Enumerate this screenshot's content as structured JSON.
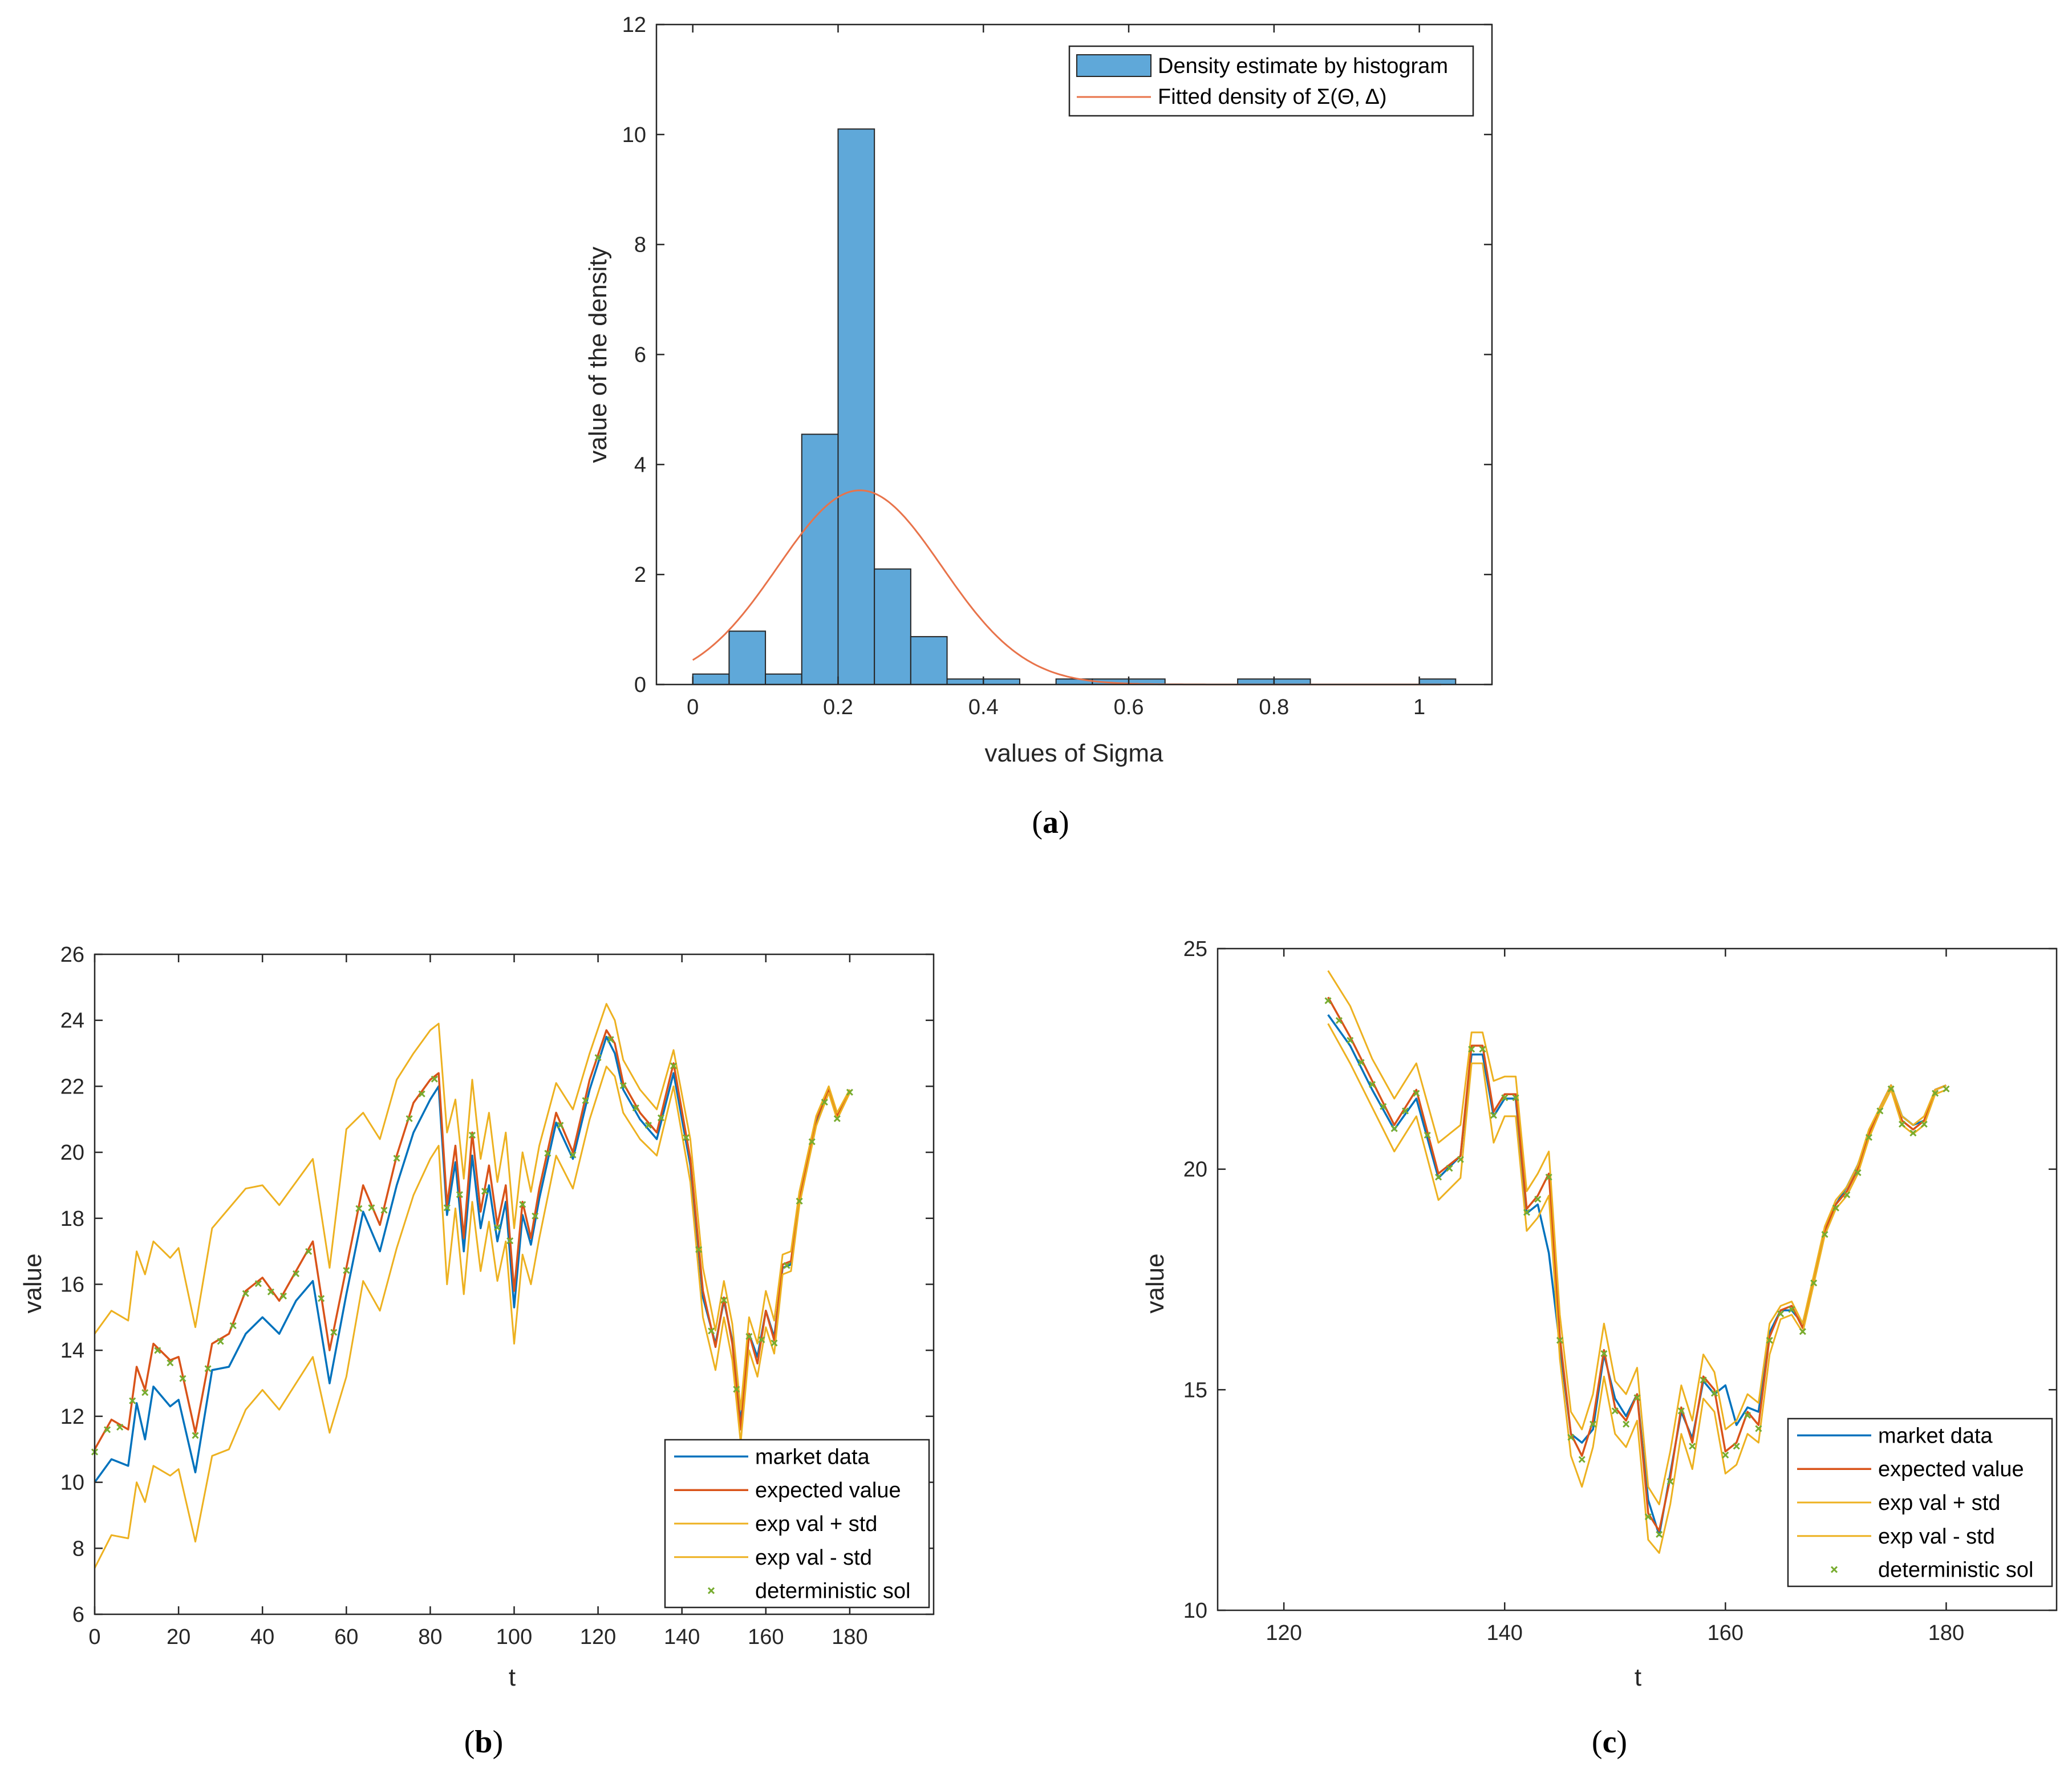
{
  "colors": {
    "blue": "#0072BD",
    "red": "#D95319",
    "orange": "#EDB120",
    "green": "#77AC30",
    "hist_fill": "#5FA8D9",
    "fitted": "#E8734A",
    "axis": "#262626",
    "legend_border": "#262626"
  },
  "captions": {
    "a": [
      "(",
      "a",
      ")"
    ],
    "b": [
      "(",
      "b",
      ")"
    ],
    "c": [
      "(",
      "c",
      ")"
    ]
  },
  "chart_data": [
    {
      "id": "a",
      "type": "bar",
      "title": "",
      "xlabel": "values of Sigma",
      "ylabel": "value of the density",
      "xlim": [
        -0.05,
        1.1
      ],
      "ylim": [
        0,
        12
      ],
      "xticks": [
        0,
        0.2,
        0.4,
        0.6,
        0.8,
        1
      ],
      "xtick_labels": [
        "0",
        "0.2",
        "0.4",
        "0.6",
        "0.8",
        "1"
      ],
      "yticks": [
        0,
        2,
        4,
        6,
        8,
        10,
        12
      ],
      "ytick_labels": [
        "0",
        "2",
        "4",
        "6",
        "8",
        "10",
        "12"
      ],
      "bin_width": 0.05,
      "bin_starts": [
        0,
        0.05,
        0.1,
        0.15,
        0.2,
        0.25,
        0.3,
        0.35,
        0.4,
        0.45,
        0.5,
        0.55,
        0.6,
        0.65,
        0.7,
        0.75,
        0.8,
        0.85,
        0.9,
        0.95,
        1.0
      ],
      "bin_heights": [
        0.19,
        0.97,
        0.19,
        4.55,
        10.1,
        2.1,
        0.87,
        0.1,
        0.1,
        0,
        0.1,
        0.1,
        0.1,
        0,
        0,
        0.1,
        0.1,
        0,
        0,
        0,
        0.1
      ],
      "fitted": {
        "mean": 0.23,
        "std": 0.113,
        "x_range": [
          0,
          1.03
        ]
      },
      "legend": [
        "Density estimate by histogram",
        "Fitted density of Σ(Θ, Δ)"
      ]
    },
    {
      "id": "b",
      "type": "line",
      "xlabel": "t",
      "ylabel": "value",
      "xlim": [
        0,
        200
      ],
      "ylim": [
        6,
        26
      ],
      "xticks": [
        0,
        20,
        40,
        60,
        80,
        100,
        120,
        140,
        160,
        180
      ],
      "xtick_labels": [
        "0",
        "20",
        "40",
        "60",
        "80",
        "100",
        "120",
        "140",
        "160",
        "180"
      ],
      "yticks": [
        6,
        8,
        10,
        12,
        14,
        16,
        18,
        20,
        22,
        24,
        26
      ],
      "ytick_labels": [
        "6",
        "8",
        "10",
        "12",
        "14",
        "16",
        "18",
        "20",
        "22",
        "24",
        "26"
      ],
      "x": [
        0,
        4,
        8,
        10,
        12,
        14,
        18,
        20,
        24,
        28,
        32,
        36,
        40,
        44,
        48,
        52,
        56,
        60,
        64,
        68,
        72,
        76,
        80,
        82,
        84,
        86,
        88,
        90,
        92,
        94,
        96,
        98,
        100,
        102,
        104,
        106,
        110,
        114,
        118,
        122,
        124,
        126,
        130,
        134,
        138,
        142,
        145,
        148,
        150,
        152,
        154,
        156,
        158,
        160,
        162,
        164,
        166,
        168,
        172,
        175,
        177,
        180
      ],
      "series": [
        {
          "name": "market data",
          "values": [
            10.0,
            10.7,
            10.5,
            12.4,
            11.3,
            12.9,
            12.3,
            12.5,
            10.3,
            13.4,
            13.5,
            14.5,
            15.0,
            14.5,
            15.5,
            16.1,
            13.0,
            15.7,
            18.2,
            17.0,
            19.0,
            20.6,
            21.6,
            22.0,
            18.1,
            19.7,
            17.0,
            19.9,
            17.7,
            19.0,
            17.3,
            18.5,
            15.3,
            18.1,
            17.2,
            18.6,
            20.9,
            19.8,
            21.9,
            23.5,
            23.0,
            21.9,
            21.0,
            20.4,
            22.4,
            19.6,
            15.6,
            14.2,
            15.5,
            14.3,
            11.8,
            14.5,
            13.8,
            15.2,
            14.4,
            16.5,
            16.6,
            18.5,
            20.9,
            21.9,
            21.1,
            21.9
          ]
        },
        {
          "name": "expected value",
          "values": [
            11.0,
            11.9,
            11.6,
            13.5,
            12.8,
            14.2,
            13.7,
            13.8,
            11.5,
            14.2,
            14.5,
            15.8,
            16.2,
            15.5,
            16.4,
            17.3,
            14.0,
            16.5,
            19.0,
            17.8,
            19.9,
            21.5,
            22.2,
            22.4,
            18.4,
            20.2,
            17.4,
            20.6,
            18.2,
            19.6,
            17.8,
            19.0,
            15.8,
            18.5,
            17.4,
            18.9,
            21.2,
            20.0,
            22.2,
            23.7,
            23.3,
            22.1,
            21.2,
            20.6,
            22.7,
            19.8,
            15.8,
            14.1,
            15.6,
            14.2,
            11.6,
            14.5,
            13.6,
            15.2,
            14.3,
            16.6,
            16.7,
            18.6,
            21.0,
            21.9,
            21.1,
            21.9
          ]
        },
        {
          "name": "exp val + std",
          "values": [
            14.5,
            15.2,
            14.9,
            17.0,
            16.3,
            17.3,
            16.8,
            17.1,
            14.7,
            17.7,
            18.3,
            18.9,
            19.0,
            18.4,
            19.1,
            19.8,
            16.5,
            20.7,
            21.2,
            20.4,
            22.2,
            23.0,
            23.7,
            23.9,
            20.6,
            21.6,
            19.2,
            22.2,
            19.8,
            21.2,
            19.1,
            20.6,
            17.7,
            20.0,
            18.8,
            20.2,
            22.1,
            21.3,
            23.0,
            24.5,
            24.0,
            22.8,
            21.9,
            21.3,
            23.1,
            20.4,
            16.5,
            14.6,
            16.1,
            14.8,
            12.2,
            15.0,
            14.2,
            15.8,
            14.9,
            16.9,
            17.0,
            18.8,
            21.1,
            22.0,
            21.2,
            21.9
          ]
        },
        {
          "name": "exp val - std",
          "values": [
            7.4,
            8.4,
            8.3,
            10.0,
            9.4,
            10.5,
            10.2,
            10.4,
            8.2,
            10.8,
            11.0,
            12.2,
            12.8,
            12.2,
            13.0,
            13.8,
            11.5,
            13.2,
            16.1,
            15.2,
            17.1,
            18.7,
            19.8,
            20.2,
            16.0,
            18.3,
            15.7,
            18.5,
            16.4,
            17.9,
            16.1,
            17.3,
            14.2,
            16.9,
            16.0,
            17.4,
            19.9,
            18.9,
            21.0,
            22.6,
            22.3,
            21.2,
            20.4,
            19.9,
            22.0,
            19.1,
            15.0,
            13.4,
            15.0,
            13.7,
            11.2,
            14.0,
            13.2,
            14.7,
            13.9,
            16.3,
            16.4,
            18.4,
            20.8,
            21.8,
            21.0,
            21.8
          ]
        }
      ],
      "scatter": {
        "name": "deterministic sol",
        "x_start": 0,
        "x_end": 180,
        "step": 3
      },
      "legend": [
        "market data",
        "expected value",
        "exp val + std",
        "exp val - std",
        "deterministic sol"
      ]
    },
    {
      "id": "c",
      "type": "line",
      "xlabel": "t",
      "ylabel": "value",
      "xlim": [
        114,
        190
      ],
      "ylim": [
        10,
        25
      ],
      "xticks": [
        120,
        140,
        160,
        180
      ],
      "xtick_labels": [
        "120",
        "140",
        "160",
        "180"
      ],
      "yticks": [
        10,
        15,
        20,
        25
      ],
      "ytick_labels": [
        "10",
        "15",
        "20",
        "25"
      ],
      "x": [
        124,
        126,
        128,
        130,
        132,
        134,
        136,
        137,
        138,
        139,
        140,
        141,
        142,
        143,
        144,
        145,
        146,
        147,
        148,
        149,
        150,
        151,
        152,
        153,
        154,
        155,
        156,
        157,
        158,
        159,
        160,
        161,
        162,
        163,
        164,
        165,
        166,
        167,
        168,
        169,
        170,
        171,
        172,
        173,
        174,
        175,
        176,
        177,
        178,
        179,
        180
      ],
      "series": [
        {
          "name": "market data",
          "values": [
            23.5,
            22.8,
            21.8,
            20.9,
            21.6,
            19.8,
            20.3,
            22.6,
            22.6,
            21.2,
            21.6,
            21.6,
            19.0,
            19.2,
            18.1,
            16.0,
            14.0,
            13.8,
            14.1,
            15.8,
            14.8,
            14.4,
            14.9,
            12.5,
            11.7,
            13.1,
            14.5,
            13.9,
            15.2,
            14.9,
            15.1,
            14.2,
            14.6,
            14.5,
            16.3,
            16.8,
            16.8,
            16.5,
            17.5,
            18.6,
            19.2,
            19.6,
            20.1,
            20.8,
            21.4,
            21.9,
            21.2,
            21.0,
            21.1,
            21.8,
            21.9
          ]
        },
        {
          "name": "expected value",
          "values": [
            23.9,
            23.0,
            22.0,
            21.0,
            21.8,
            19.9,
            20.3,
            22.8,
            22.8,
            21.3,
            21.7,
            21.7,
            19.1,
            19.4,
            19.9,
            16.2,
            14.0,
            13.5,
            14.3,
            15.9,
            14.6,
            14.3,
            14.9,
            12.2,
            11.8,
            13.0,
            14.6,
            13.8,
            15.3,
            15.0,
            13.6,
            13.8,
            14.5,
            14.2,
            16.2,
            16.8,
            16.9,
            16.4,
            17.5,
            18.6,
            19.2,
            19.5,
            20.0,
            20.8,
            21.4,
            21.9,
            21.1,
            20.9,
            21.1,
            21.8,
            21.9
          ]
        },
        {
          "name": "exp val + std",
          "values": [
            24.5,
            23.7,
            22.5,
            21.6,
            22.4,
            20.6,
            21.0,
            23.1,
            23.1,
            22.0,
            22.1,
            22.1,
            19.5,
            19.9,
            20.4,
            16.7,
            14.5,
            14.1,
            14.9,
            16.5,
            15.2,
            14.9,
            15.5,
            12.8,
            12.4,
            13.6,
            15.1,
            14.3,
            15.8,
            15.4,
            14.1,
            14.3,
            14.9,
            14.7,
            16.5,
            16.9,
            17.0,
            16.5,
            17.6,
            18.7,
            19.3,
            19.6,
            20.1,
            20.9,
            21.4,
            21.9,
            21.2,
            21.0,
            21.2,
            21.8,
            21.9
          ]
        },
        {
          "name": "exp val - std",
          "values": [
            23.3,
            22.4,
            21.4,
            20.4,
            21.2,
            19.3,
            19.8,
            22.4,
            22.4,
            20.6,
            21.2,
            21.2,
            18.6,
            18.9,
            19.4,
            15.7,
            13.5,
            12.8,
            13.7,
            15.3,
            14.0,
            13.7,
            14.3,
            11.6,
            11.3,
            12.4,
            14.0,
            13.2,
            14.8,
            14.5,
            13.1,
            13.3,
            14.0,
            13.8,
            15.8,
            16.6,
            16.7,
            16.3,
            17.4,
            18.5,
            19.1,
            19.4,
            19.9,
            20.7,
            21.3,
            21.8,
            21.0,
            20.8,
            21.0,
            21.7,
            21.8
          ]
        }
      ],
      "scatter": {
        "name": "deterministic sol",
        "x_start": 124,
        "x_end": 180,
        "step": 1
      },
      "legend": [
        "market data",
        "expected value",
        "exp val + std",
        "exp val - std",
        "deterministic sol"
      ]
    }
  ]
}
